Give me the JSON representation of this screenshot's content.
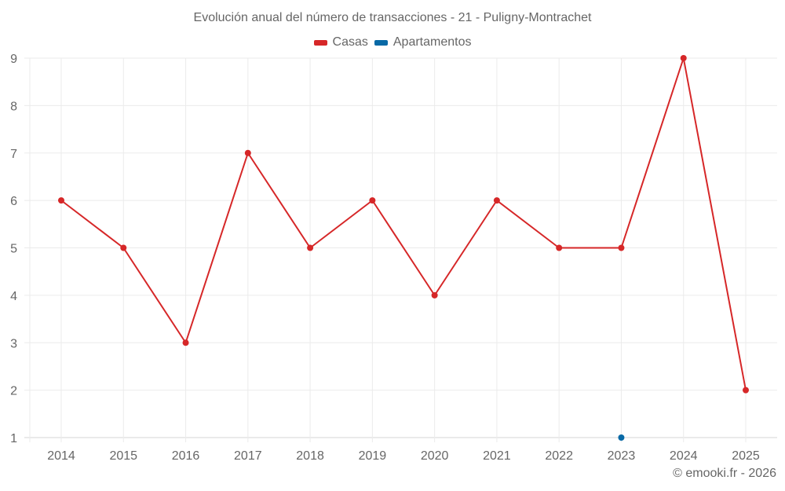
{
  "title": "Evolución anual del número de transacciones - 21 - Puligny-Montrachet",
  "legend": [
    {
      "label": "Casas",
      "color": "#d62728"
    },
    {
      "label": "Apartamentos",
      "color": "#0869a6"
    }
  ],
  "credit": "© emooki.fr - 2026",
  "chart_data": {
    "type": "line",
    "title": "Evolución anual del número de transacciones - 21 - Puligny-Montrachet",
    "xlabel": "",
    "ylabel": "",
    "categories": [
      "2014",
      "2015",
      "2016",
      "2017",
      "2018",
      "2019",
      "2020",
      "2021",
      "2022",
      "2023",
      "2024",
      "2025"
    ],
    "series": [
      {
        "name": "Casas",
        "color": "#d62728",
        "values": [
          6,
          5,
          3,
          7,
          5,
          6,
          4,
          6,
          5,
          5,
          9,
          2
        ]
      },
      {
        "name": "Apartamentos",
        "color": "#0869a6",
        "values": [
          null,
          null,
          null,
          null,
          null,
          null,
          null,
          null,
          null,
          1,
          null,
          null
        ]
      }
    ],
    "yticks": [
      1,
      2,
      3,
      4,
      5,
      6,
      7,
      8,
      9
    ],
    "ylim": [
      1,
      9
    ],
    "grid": true,
    "legend_position": "top"
  }
}
